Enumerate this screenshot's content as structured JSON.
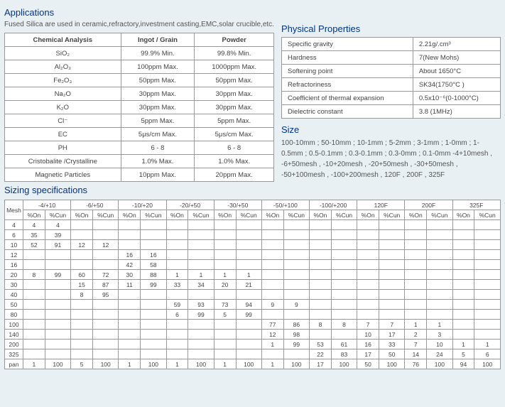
{
  "titles": {
    "applications": "Applications",
    "physical": "Physical Properties",
    "size": "Size",
    "sizing": "Sizing specifications"
  },
  "intro": "Fused Silica are used in ceramic,refractory,investment casting,EMC,solar crucible,etc.",
  "chem": {
    "headers": [
      "Chemical Analysis",
      "Ingot / Grain",
      "Powder"
    ],
    "rows": [
      [
        "SiO₂",
        "99.9% Min.",
        "99.8% Min."
      ],
      [
        "Al₂O₃",
        "100ppm Max.",
        "1000ppm Max."
      ],
      [
        "Fe₂O₃",
        "50ppm Max.",
        "50ppm Max."
      ],
      [
        "Na₂O",
        "30ppm Max.",
        "30ppm Max."
      ],
      [
        "K₂O",
        "30ppm Max.",
        "30ppm Max."
      ],
      [
        "Cl⁻",
        "5ppm Max.",
        "5ppm Max."
      ],
      [
        "EC",
        "5μs/cm Max.",
        "5μs/cm Max."
      ],
      [
        "PH",
        "6 - 8",
        "6 - 8"
      ],
      [
        "Cristobalite /Crystalline",
        "1.0% Max.",
        "1.0% Max."
      ],
      [
        "Magnetic Particles",
        "10ppm Max.",
        "20ppm Max."
      ]
    ]
  },
  "phys": {
    "rows": [
      [
        "Specific gravity",
        "2.21g/.cm³"
      ],
      [
        "Hardness",
        "7(New Mohs)"
      ],
      [
        "Softening point",
        "About 1650°C"
      ],
      [
        "Refractoriness",
        "SK34(1750°C )"
      ],
      [
        "Coefficient of thermal expansion",
        "0.5x10⁻⁶(0-1000°C)"
      ],
      [
        "Dielectric constant",
        "3.8 (1MHz)"
      ]
    ]
  },
  "sizeText": "100-10mm ; 50-10mm ; 10-1mm ; 5-2mm ; 3-1mm ; 1-0mm ; 1-0.5mm ; 0.5-0.1mm ; 0.3-0.1mm ; 0.3-0mm ; 0.1-0mm -4+10mesh , -6+50mesh , -10+20mesh , -20+50mesh , -30+50mesh , -50+100mesh , -100+200mesh , 120F , 200F , 325F",
  "sizing": {
    "groups": [
      "-4/+10",
      "-6/+50",
      "-10/+20",
      "-20/+50",
      "-30/+50",
      "-50/+100",
      "-100/+200",
      "120F",
      "200F",
      "325F"
    ],
    "sub": [
      "%On",
      "%Cun"
    ],
    "meshLabel": "Mesh",
    "rows": [
      {
        "m": "4",
        "c": [
          "4",
          "4",
          "",
          "",
          "",
          "",
          "",
          "",
          "",
          "",
          "",
          "",
          "",
          "",
          "",
          "",
          "",
          "",
          "",
          ""
        ]
      },
      {
        "m": "6",
        "c": [
          "35",
          "39",
          "",
          "",
          "",
          "",
          "",
          "",
          "",
          "",
          "",
          "",
          "",
          "",
          "",
          "",
          "",
          "",
          "",
          ""
        ]
      },
      {
        "m": "10",
        "c": [
          "52",
          "91",
          "12",
          "12",
          "",
          "",
          "",
          "",
          "",
          "",
          "",
          "",
          "",
          "",
          "",
          "",
          "",
          "",
          "",
          ""
        ]
      },
      {
        "m": "12",
        "c": [
          "",
          "",
          "",
          "",
          "16",
          "16",
          "",
          "",
          "",
          "",
          "",
          "",
          "",
          "",
          "",
          "",
          "",
          "",
          "",
          ""
        ]
      },
      {
        "m": "16",
        "c": [
          "",
          "",
          "",
          "",
          "42",
          "58",
          "",
          "",
          "",
          "",
          "",
          "",
          "",
          "",
          "",
          "",
          "",
          "",
          "",
          ""
        ]
      },
      {
        "m": "20",
        "c": [
          "8",
          "99",
          "60",
          "72",
          "30",
          "88",
          "1",
          "1",
          "1",
          "1",
          "",
          "",
          "",
          "",
          "",
          "",
          "",
          "",
          "",
          ""
        ]
      },
      {
        "m": "30",
        "c": [
          "",
          "",
          "15",
          "87",
          "11",
          "99",
          "33",
          "34",
          "20",
          "21",
          "",
          "",
          "",
          "",
          "",
          "",
          "",
          "",
          "",
          ""
        ]
      },
      {
        "m": "40",
        "c": [
          "",
          "",
          "8",
          "95",
          "",
          "",
          "",
          "",
          "",
          "",
          "",
          "",
          "",
          "",
          "",
          "",
          "",
          "",
          "",
          ""
        ]
      },
      {
        "m": "50",
        "c": [
          "",
          "",
          "",
          "",
          "",
          "",
          "59",
          "93",
          "73",
          "94",
          "9",
          "9",
          "",
          "",
          "",
          "",
          "",
          "",
          "",
          ""
        ]
      },
      {
        "m": "80",
        "c": [
          "",
          "",
          "",
          "",
          "",
          "",
          "6",
          "99",
          "5",
          "99",
          "",
          "",
          "",
          "",
          "",
          "",
          "",
          "",
          "",
          ""
        ]
      },
      {
        "m": "100",
        "c": [
          "",
          "",
          "",
          "",
          "",
          "",
          "",
          "",
          "",
          "",
          "77",
          "86",
          "8",
          "8",
          "7",
          "7",
          "1",
          "1",
          "",
          ""
        ]
      },
      {
        "m": "140",
        "c": [
          "",
          "",
          "",
          "",
          "",
          "",
          "",
          "",
          "",
          "",
          "12",
          "98",
          "",
          "",
          "10",
          "17",
          "2",
          "3",
          "",
          ""
        ]
      },
      {
        "m": "200",
        "c": [
          "",
          "",
          "",
          "",
          "",
          "",
          "",
          "",
          "",
          "",
          "1",
          "99",
          "53",
          "61",
          "16",
          "33",
          "7",
          "10",
          "1",
          "1"
        ]
      },
      {
        "m": "325",
        "c": [
          "",
          "",
          "",
          "",
          "",
          "",
          "",
          "",
          "",
          "",
          "",
          "",
          "22",
          "83",
          "17",
          "50",
          "14",
          "24",
          "5",
          "6"
        ]
      },
      {
        "m": "pan",
        "c": [
          "1",
          "100",
          "5",
          "100",
          "1",
          "100",
          "1",
          "100",
          "1",
          "100",
          "1",
          "100",
          "17",
          "100",
          "50",
          "100",
          "76",
          "100",
          "94",
          "100"
        ]
      }
    ]
  },
  "colors": {
    "title": "#003399",
    "bg": "#e8f0f3",
    "border": "#999",
    "cellBg": "#ffffff"
  }
}
